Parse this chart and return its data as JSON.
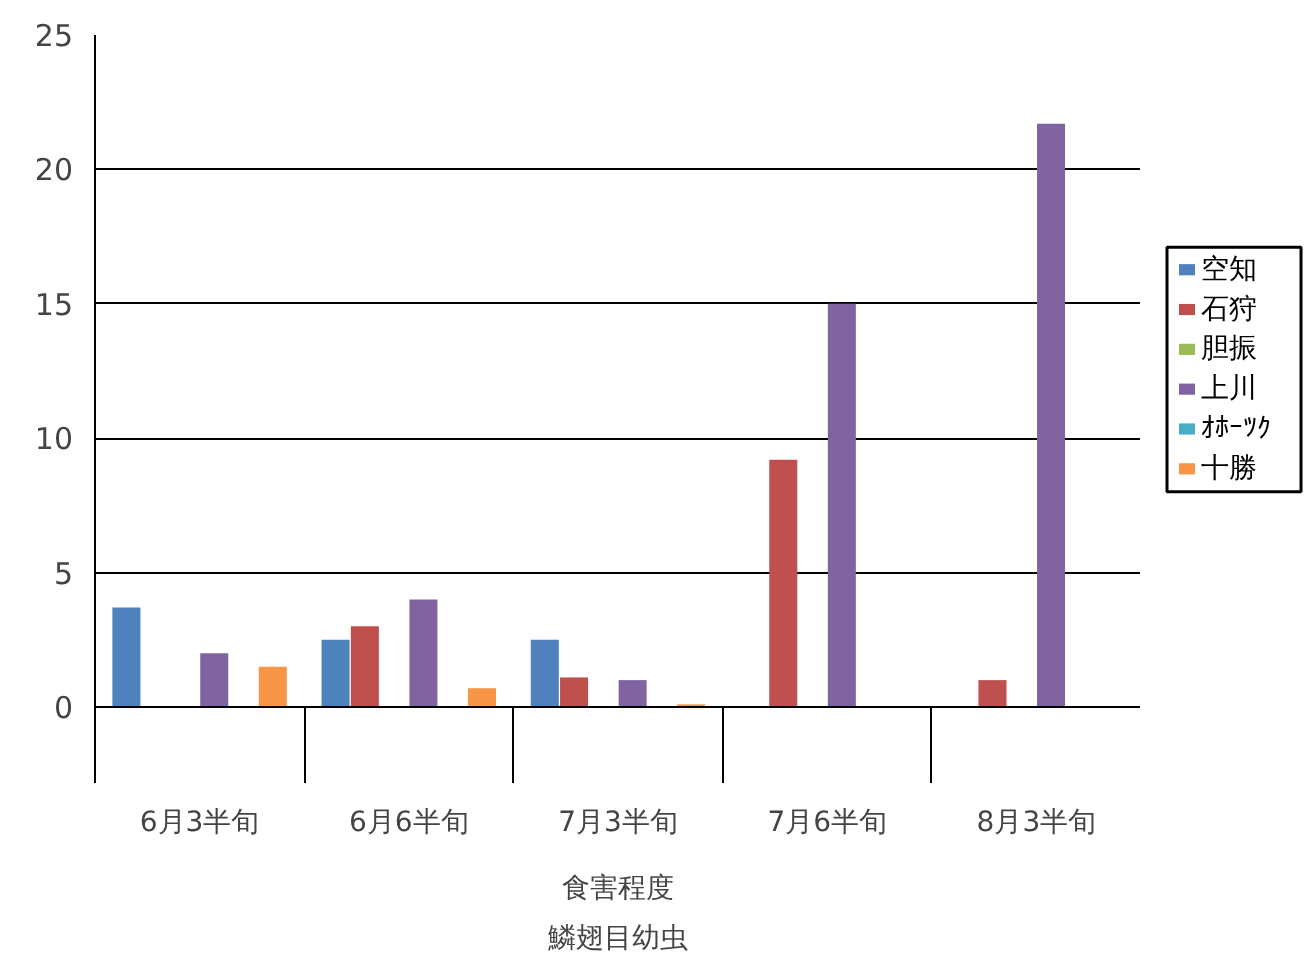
{
  "chart_data": {
    "type": "bar",
    "categories": [
      "6月3半旬",
      "6月6半旬",
      "7月3半旬",
      "7月6半旬",
      "8月3半旬"
    ],
    "xlabel": "食害程度",
    "annotations": [
      "鱗翅目幼虫"
    ],
    "series": [
      {
        "name": "空知",
        "color": "#4f81bd",
        "values": [
          3.7,
          2.5,
          2.5,
          null,
          null
        ]
      },
      {
        "name": "石狩",
        "color": "#c0504d",
        "values": [
          null,
          3.0,
          1.1,
          9.2,
          1.0
        ]
      },
      {
        "name": "胆振",
        "color": "#9bbb59",
        "values": [
          null,
          null,
          null,
          null,
          null
        ]
      },
      {
        "name": "上川",
        "color": "#8064a2",
        "values": [
          2.0,
          4.0,
          1.0,
          15.0,
          21.7
        ]
      },
      {
        "name": "ｵﾎｰﾂｸ",
        "color": "#4bacc6",
        "values": [
          null,
          null,
          null,
          null,
          null
        ]
      },
      {
        "name": "十勝",
        "color": "#f79646",
        "values": [
          1.5,
          0.7,
          0.1,
          null,
          null
        ]
      }
    ],
    "ylim": [
      0,
      25
    ],
    "yticks": [
      0,
      5,
      10,
      15,
      20,
      25
    ],
    "grid": "y",
    "legend": "right"
  }
}
